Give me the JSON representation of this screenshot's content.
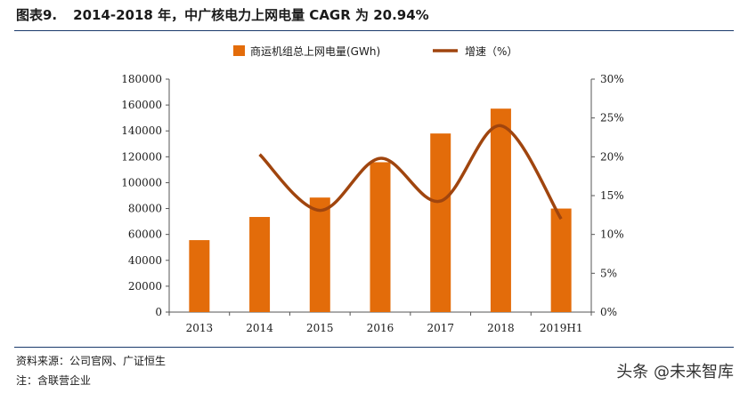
{
  "figure": {
    "number": "图表9.",
    "title": "2014-2018 年，中广核电力上网电量 CAGR 为 20.94%"
  },
  "notes": {
    "source": "资料来源：公司官网、广证恒生",
    "note": "注：含联营企业"
  },
  "watermark": "头条 @未来智库",
  "chart_data": {
    "type": "bar",
    "categories": [
      "2013",
      "2014",
      "2015",
      "2016",
      "2017",
      "2018",
      "2019H1"
    ],
    "series": [
      {
        "name": "商运机组总上网电量(GWh)",
        "type": "bar",
        "axis": "left",
        "color": "#e36c0a",
        "values": [
          55600,
          73500,
          88500,
          115800,
          138000,
          157200,
          80000
        ]
      },
      {
        "name": "增速（%）",
        "type": "line",
        "axis": "right",
        "color": "#a0450e",
        "values": [
          null,
          20.3,
          13.1,
          19.8,
          14.3,
          24.0,
          12.0
        ]
      }
    ],
    "y_left": {
      "min": 0,
      "max": 180000,
      "ticks": [
        "0",
        "20000",
        "40000",
        "60000",
        "80000",
        "100000",
        "120000",
        "140000",
        "160000",
        "180000"
      ]
    },
    "y_right": {
      "min": 0,
      "max": 30,
      "ticks": [
        "0%",
        "5%",
        "10%",
        "15%",
        "20%",
        "25%",
        "30%"
      ]
    },
    "legend_position": "top",
    "grid": false
  }
}
